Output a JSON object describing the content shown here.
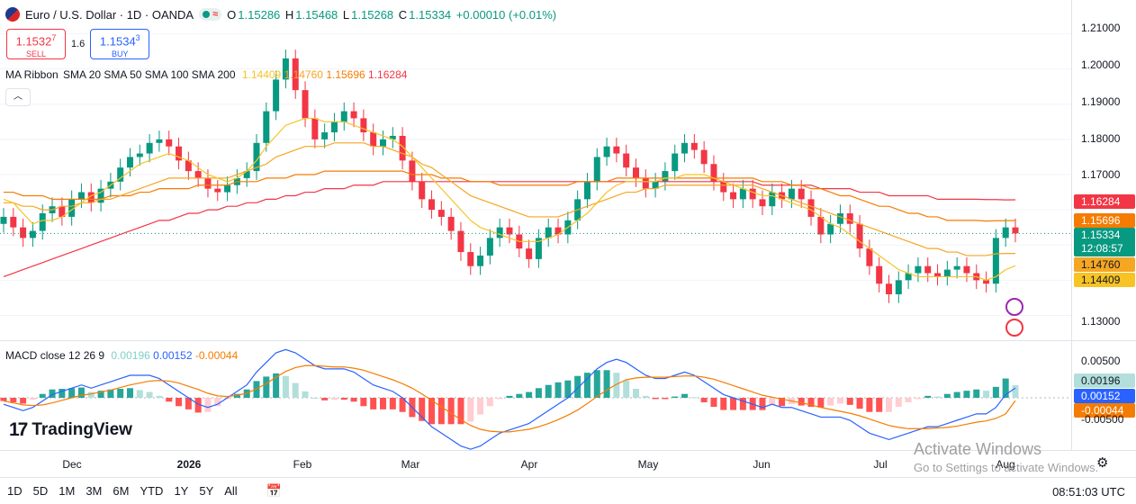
{
  "header": {
    "symbol_title": "Euro / U.S. Dollar · 1D · OANDA",
    "wave_glyph": "≈",
    "ohlc": [
      {
        "key": "O",
        "value": "1.15286"
      },
      {
        "key": "H",
        "value": "1.15468"
      },
      {
        "key": "L",
        "value": "1.15268"
      },
      {
        "key": "C",
        "value": "1.15334"
      }
    ],
    "change": "+0.00010 (+0.01%)"
  },
  "trade": {
    "sell_price": "1.1532",
    "sell_price_sup": "7",
    "sell_label": "SELL",
    "spread": "1.6",
    "buy_price": "1.1534",
    "buy_price_sup": "3",
    "buy_label": "BUY"
  },
  "ma_ribbon": {
    "name": "MA Ribbon",
    "params": "SMA 20 SMA 50 SMA 100 SMA 200",
    "values": [
      "1.14409",
      "1.14760",
      "1.15696",
      "1.16284"
    ],
    "colors": [
      "#f7c325",
      "#f5a623",
      "#f57c00",
      "#f23645"
    ]
  },
  "macd": {
    "name": "MACD",
    "params": "close 12 26 9",
    "hist": "0.00196",
    "macd": "0.00152",
    "signal": "-0.00044",
    "colors": {
      "hist": "#7fd1c7",
      "macd": "#2962ff",
      "signal": "#f57c00"
    }
  },
  "price_axis": {
    "ticks": [
      "1.21000",
      "1.20000",
      "1.19000",
      "1.18000",
      "1.17000",
      "1.13000"
    ],
    "labels": {
      "sma200": "1.16284",
      "sma100": "1.15696",
      "current": "1.15334",
      "countdown": "12:08:57",
      "sma50": "1.14760",
      "sma20": "1.14409"
    },
    "macd_ticks": [
      "0.00500",
      "-0.00500"
    ],
    "macd_labels": {
      "hist": "0.00196",
      "macd": "0.00152",
      "signal": "-0.00044"
    }
  },
  "time_axis": {
    "labels": [
      {
        "text": "Dec",
        "bold": false
      },
      {
        "text": "2026",
        "bold": true
      },
      {
        "text": "Feb",
        "bold": false
      },
      {
        "text": "Mar",
        "bold": false
      },
      {
        "text": "Apr",
        "bold": false
      },
      {
        "text": "May",
        "bold": false
      },
      {
        "text": "Jun",
        "bold": false
      },
      {
        "text": "Jul",
        "bold": false
      },
      {
        "text": "Aug",
        "bold": false
      }
    ]
  },
  "bottom_bar": {
    "ranges": [
      "1D",
      "5D",
      "1M",
      "3M",
      "6M",
      "YTD",
      "1Y",
      "5Y",
      "All"
    ],
    "clock": "08:51:03 UTC"
  },
  "logo": {
    "mark": "17",
    "text": "TradingView"
  },
  "watermark": {
    "line1": "Activate Windows",
    "line2": "Go to Settings to activate Windows."
  },
  "colors": {
    "up": "#089981",
    "down": "#f23645",
    "grid": "#e0e3eb"
  },
  "chart_data": {
    "type": "candlestick",
    "symbol": "EURUSD",
    "x": [
      "2025-11-20",
      "2025-12-01",
      "2026-01-01",
      "2026-02-01",
      "2026-03-01",
      "2026-04-01",
      "2026-05-01",
      "2026-06-01",
      "2026-07-01",
      "2026-08-01"
    ],
    "x_labels": [
      "Dec",
      "2026",
      "Feb",
      "Mar",
      "Apr",
      "May",
      "Jun",
      "Jul",
      "Aug"
    ],
    "ylim": [
      1.125,
      1.215
    ],
    "price_series": {
      "close": [
        1.158,
        1.155,
        1.152,
        1.154,
        1.159,
        1.161,
        1.158,
        1.163,
        1.165,
        1.162,
        1.166,
        1.168,
        1.172,
        1.175,
        1.176,
        1.179,
        1.18,
        1.178,
        1.174,
        1.171,
        1.169,
        1.166,
        1.165,
        1.167,
        1.169,
        1.171,
        1.179,
        1.188,
        1.197,
        1.203,
        1.194,
        1.186,
        1.18,
        1.182,
        1.185,
        1.188,
        1.186,
        1.182,
        1.178,
        1.18,
        1.181,
        1.174,
        1.168,
        1.163,
        1.16,
        1.158,
        1.154,
        1.148,
        1.144,
        1.147,
        1.152,
        1.155,
        1.153,
        1.149,
        1.146,
        1.152,
        1.155,
        1.153,
        1.157,
        1.163,
        1.168,
        1.175,
        1.178,
        1.176,
        1.172,
        1.169,
        1.166,
        1.168,
        1.171,
        1.176,
        1.179,
        1.177,
        1.173,
        1.168,
        1.165,
        1.163,
        1.166,
        1.163,
        1.161,
        1.165,
        1.163,
        1.166,
        1.163,
        1.158,
        1.153,
        1.156,
        1.159,
        1.156,
        1.149,
        1.144,
        1.139,
        1.136,
        1.14,
        1.142,
        1.144,
        1.142,
        1.141,
        1.143,
        1.144,
        1.142,
        1.14,
        1.139,
        1.152,
        1.155,
        1.1533
      ],
      "sma20": [
        1.163,
        1.162,
        1.159,
        1.156,
        1.157,
        1.157,
        1.158,
        1.16,
        1.162,
        1.164,
        1.165,
        1.167,
        1.169,
        1.171,
        1.173,
        1.174,
        1.175,
        1.176,
        1.175,
        1.174,
        1.172,
        1.17,
        1.169,
        1.168,
        1.169,
        1.171,
        1.174,
        1.178,
        1.181,
        1.184,
        1.185,
        1.186,
        1.186,
        1.185,
        1.185,
        1.185,
        1.184,
        1.183,
        1.182,
        1.181,
        1.18,
        1.178,
        1.175,
        1.172,
        1.169,
        1.166,
        1.163,
        1.16,
        1.157,
        1.155,
        1.154,
        1.153,
        1.152,
        1.151,
        1.151,
        1.151,
        1.152,
        1.153,
        1.155,
        1.157,
        1.159,
        1.162,
        1.165,
        1.167,
        1.168,
        1.168,
        1.168,
        1.168,
        1.169,
        1.169,
        1.17,
        1.17,
        1.17,
        1.169,
        1.168,
        1.167,
        1.166,
        1.165,
        1.164,
        1.164,
        1.163,
        1.162,
        1.161,
        1.16,
        1.158,
        1.156,
        1.155,
        1.153,
        1.151,
        1.149,
        1.147,
        1.145,
        1.143,
        1.142,
        1.141,
        1.141,
        1.141,
        1.141,
        1.141,
        1.141,
        1.141,
        1.14,
        1.141,
        1.143,
        1.14409
      ],
      "sma50": [
        1.162,
        1.162,
        1.161,
        1.161,
        1.16,
        1.16,
        1.161,
        1.161,
        1.162,
        1.162,
        1.163,
        1.163,
        1.164,
        1.165,
        1.166,
        1.167,
        1.168,
        1.169,
        1.169,
        1.169,
        1.169,
        1.169,
        1.169,
        1.169,
        1.17,
        1.171,
        1.172,
        1.173,
        1.175,
        1.176,
        1.177,
        1.178,
        1.178,
        1.178,
        1.179,
        1.179,
        1.179,
        1.179,
        1.178,
        1.178,
        1.177,
        1.176,
        1.175,
        1.173,
        1.172,
        1.17,
        1.168,
        1.166,
        1.164,
        1.163,
        1.162,
        1.161,
        1.16,
        1.159,
        1.158,
        1.158,
        1.158,
        1.158,
        1.159,
        1.16,
        1.161,
        1.162,
        1.163,
        1.164,
        1.165,
        1.165,
        1.166,
        1.166,
        1.167,
        1.167,
        1.167,
        1.167,
        1.167,
        1.167,
        1.167,
        1.167,
        1.167,
        1.167,
        1.166,
        1.165,
        1.164,
        1.163,
        1.162,
        1.161,
        1.16,
        1.159,
        1.158,
        1.157,
        1.156,
        1.155,
        1.154,
        1.153,
        1.152,
        1.151,
        1.15,
        1.149,
        1.149,
        1.148,
        1.148,
        1.147,
        1.147,
        1.147,
        1.1475,
        1.1476,
        1.1476
      ],
      "sma100": [
        1.165,
        1.165,
        1.164,
        1.164,
        1.164,
        1.163,
        1.163,
        1.163,
        1.163,
        1.163,
        1.163,
        1.164,
        1.164,
        1.164,
        1.165,
        1.165,
        1.166,
        1.166,
        1.166,
        1.166,
        1.167,
        1.167,
        1.167,
        1.167,
        1.168,
        1.168,
        1.168,
        1.169,
        1.169,
        1.169,
        1.17,
        1.17,
        1.17,
        1.171,
        1.171,
        1.171,
        1.171,
        1.171,
        1.171,
        1.171,
        1.171,
        1.171,
        1.17,
        1.17,
        1.17,
        1.169,
        1.169,
        1.169,
        1.168,
        1.168,
        1.168,
        1.167,
        1.167,
        1.167,
        1.167,
        1.167,
        1.167,
        1.167,
        1.167,
        1.168,
        1.168,
        1.168,
        1.168,
        1.169,
        1.169,
        1.169,
        1.169,
        1.169,
        1.169,
        1.169,
        1.169,
        1.169,
        1.169,
        1.169,
        1.169,
        1.169,
        1.169,
        1.169,
        1.168,
        1.168,
        1.168,
        1.167,
        1.167,
        1.166,
        1.166,
        1.165,
        1.164,
        1.164,
        1.163,
        1.162,
        1.161,
        1.161,
        1.16,
        1.159,
        1.159,
        1.158,
        1.158,
        1.157,
        1.157,
        1.157,
        1.157,
        1.1568,
        1.1569,
        1.1569,
        1.15696
      ],
      "sma200": [
        1.141,
        1.142,
        1.143,
        1.144,
        1.145,
        1.146,
        1.147,
        1.148,
        1.149,
        1.15,
        1.151,
        1.152,
        1.153,
        1.154,
        1.155,
        1.156,
        1.157,
        1.157,
        1.158,
        1.159,
        1.159,
        1.16,
        1.16,
        1.161,
        1.161,
        1.162,
        1.162,
        1.163,
        1.163,
        1.164,
        1.164,
        1.165,
        1.165,
        1.166,
        1.166,
        1.166,
        1.167,
        1.167,
        1.167,
        1.168,
        1.168,
        1.168,
        1.168,
        1.168,
        1.168,
        1.168,
        1.168,
        1.168,
        1.168,
        1.168,
        1.168,
        1.168,
        1.168,
        1.168,
        1.168,
        1.168,
        1.168,
        1.168,
        1.168,
        1.168,
        1.168,
        1.168,
        1.168,
        1.168,
        1.168,
        1.168,
        1.168,
        1.168,
        1.168,
        1.168,
        1.168,
        1.168,
        1.168,
        1.168,
        1.168,
        1.168,
        1.168,
        1.168,
        1.167,
        1.167,
        1.167,
        1.167,
        1.167,
        1.167,
        1.166,
        1.166,
        1.166,
        1.166,
        1.165,
        1.165,
        1.165,
        1.164,
        1.164,
        1.164,
        1.164,
        1.164,
        1.163,
        1.163,
        1.163,
        1.163,
        1.163,
        1.1629,
        1.1629,
        1.1628,
        1.16284
      ]
    },
    "macd_series": {
      "ylim": [
        -0.007,
        0.007
      ],
      "macd": [
        -0.001,
        -0.0015,
        -0.002,
        -0.0015,
        -0.0005,
        0.0005,
        0.001,
        0.0015,
        0.002,
        0.0015,
        0.002,
        0.0025,
        0.003,
        0.0035,
        0.0035,
        0.0035,
        0.003,
        0.002,
        0.001,
        0.0,
        -0.001,
        -0.0015,
        -0.001,
        0.0,
        0.001,
        0.002,
        0.004,
        0.0055,
        0.007,
        0.0075,
        0.007,
        0.006,
        0.005,
        0.0045,
        0.0045,
        0.0045,
        0.004,
        0.003,
        0.002,
        0.0015,
        0.001,
        0.0,
        -0.0015,
        -0.003,
        -0.0045,
        -0.0055,
        -0.0065,
        -0.0075,
        -0.008,
        -0.0075,
        -0.0065,
        -0.0055,
        -0.005,
        -0.0045,
        -0.004,
        -0.003,
        -0.002,
        -0.001,
        0.0,
        0.0015,
        0.003,
        0.0045,
        0.0055,
        0.006,
        0.0055,
        0.0045,
        0.0035,
        0.003,
        0.003,
        0.0035,
        0.004,
        0.0035,
        0.0025,
        0.0015,
        0.0005,
        0.0,
        -0.0005,
        -0.001,
        -0.0015,
        -0.001,
        -0.0015,
        -0.0015,
        -0.002,
        -0.0025,
        -0.003,
        -0.003,
        -0.003,
        -0.0035,
        -0.0045,
        -0.0055,
        -0.006,
        -0.0065,
        -0.006,
        -0.0055,
        -0.005,
        -0.0045,
        -0.0045,
        -0.004,
        -0.0035,
        -0.003,
        -0.0025,
        -0.0025,
        -0.0015,
        0.0005,
        0.00152
      ],
      "signal": [
        -0.0005,
        -0.0008,
        -0.0011,
        -0.0012,
        -0.0011,
        -0.0008,
        -0.0004,
        0.0,
        0.0004,
        0.0006,
        0.0009,
        0.0012,
        0.0016,
        0.002,
        0.0023,
        0.0026,
        0.0027,
        0.0026,
        0.0023,
        0.0018,
        0.0013,
        0.0007,
        0.0003,
        0.0002,
        0.0004,
        0.0007,
        0.0014,
        0.0022,
        0.0032,
        0.0041,
        0.0047,
        0.005,
        0.005,
        0.0049,
        0.0048,
        0.0048,
        0.0046,
        0.0043,
        0.0038,
        0.0033,
        0.0028,
        0.0022,
        0.0015,
        0.0006,
        -0.0004,
        -0.0014,
        -0.0024,
        -0.0034,
        -0.0043,
        -0.0049,
        -0.0052,
        -0.0053,
        -0.0053,
        -0.0051,
        -0.0049,
        -0.0045,
        -0.004,
        -0.0034,
        -0.0027,
        -0.0019,
        -0.0009,
        0.0002,
        0.0012,
        0.0021,
        0.0028,
        0.0031,
        0.0032,
        0.0032,
        0.0032,
        0.0033,
        0.0034,
        0.0034,
        0.0032,
        0.0029,
        0.0024,
        0.0019,
        0.0014,
        0.0009,
        0.0004,
        0.0001,
        -0.0002,
        -0.0005,
        -0.0008,
        -0.0011,
        -0.0015,
        -0.0018,
        -0.0021,
        -0.0024,
        -0.0028,
        -0.0033,
        -0.0038,
        -0.0043,
        -0.0046,
        -0.0048,
        -0.0048,
        -0.0048,
        -0.0047,
        -0.0046,
        -0.0044,
        -0.0041,
        -0.0038,
        -0.0036,
        -0.0032,
        -0.0025,
        -0.00044
      ]
    }
  }
}
